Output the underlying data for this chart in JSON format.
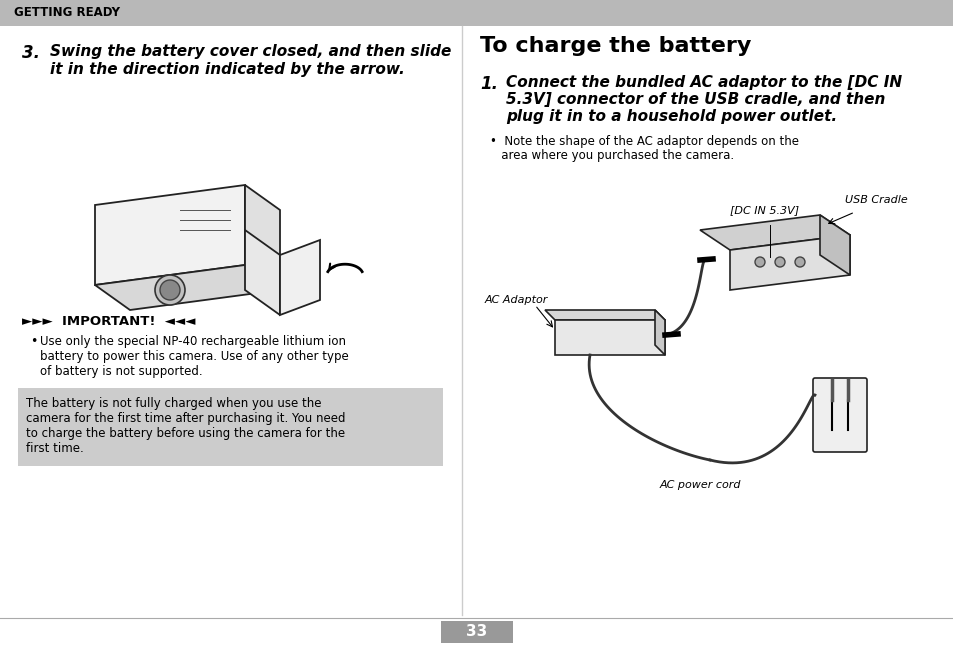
{
  "bg_color": "#ffffff",
  "header_bg": "#b8b8b8",
  "header_text": "GETTING READY",
  "header_text_color": "#000000",
  "left_step_num": "3.",
  "left_step_line1": "Swing the battery cover closed, and then slide",
  "left_step_line2": "it in the direction indicated by the arrow.",
  "important_label": "►►►  IMPORTANT!  ◄◄◄",
  "important_bullet_lines": [
    "Use only the special NP-40 rechargeable lithium ion",
    "battery to power this camera. Use of any other type",
    "of battery is not supported."
  ],
  "note_box_lines": [
    "The battery is not fully charged when you use the",
    "camera for the first time after purchasing it. You need",
    "to charge the battery before using the camera for the",
    "first time."
  ],
  "note_box_bg": "#cccccc",
  "right_title": "To charge the battery",
  "right_step_num": "1.",
  "right_step_line1": "Connect the bundled AC adaptor to the [DC IN",
  "right_step_line2": "5.3V] connector of the USB cradle, and then",
  "right_step_line3": "plug it in to a household power outlet.",
  "right_bullet_line1": "•  Note the shape of the AC adaptor depends on the",
  "right_bullet_line2": "   area where you purchased the camera.",
  "label_dc": "[DC IN 5.3V]",
  "label_usb": "USB Cradle",
  "label_ac_adaptor": "AC Adaptor",
  "label_ac_cord": "AC power cord",
  "page_num": "33",
  "page_bg": "#999999",
  "page_text_color": "#ffffff",
  "divider_color": "#cccccc",
  "footer_line_color": "#aaaaaa"
}
